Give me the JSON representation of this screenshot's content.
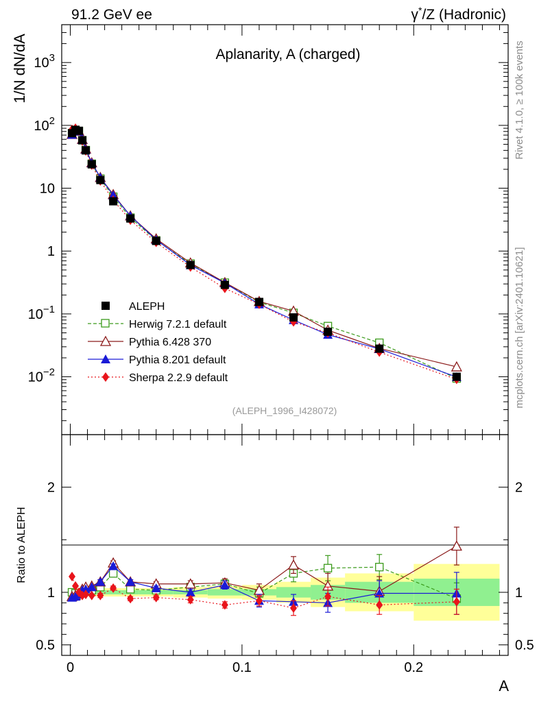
{
  "header": {
    "left": "91.2 GeV ee",
    "right_gamma": "γ",
    "right_star": "*",
    "right_rest": "/Z (Hadronic)"
  },
  "side": {
    "rivet": "Rivet 4.1.0, ≥ 100k events",
    "mcplots": "mcplots.cern.ch [arXiv:2401.10621]"
  },
  "chart_data": {
    "type": "line",
    "title": "Aplanarity, A (charged)",
    "reference": "(ALEPH_1996_I428072)",
    "ylabel_main": "1/N  dN/dA",
    "ylabel_ratio": "Ratio to ALEPH",
    "xlabel": "A",
    "xlim": [
      -0.005,
      0.255
    ],
    "ylim_main": [
      0.0012,
      4000
    ],
    "ylim_ratio": [
      0.4,
      2.5
    ],
    "main_ticks": [
      {
        "value": 0.01,
        "base": "10",
        "exp": "−2"
      },
      {
        "value": 0.1,
        "base": "10",
        "exp": "−1"
      },
      {
        "value": 1,
        "base": "1",
        "exp": ""
      },
      {
        "value": 10,
        "base": "10",
        "exp": ""
      },
      {
        "value": 100,
        "base": "10",
        "exp": "2"
      },
      {
        "value": 1000,
        "base": "10",
        "exp": "3"
      }
    ],
    "ratio_ticks": [
      {
        "value": 0.5,
        "label": "0.5"
      },
      {
        "value": 1,
        "label": "1"
      },
      {
        "value": 2,
        "label": "2"
      }
    ],
    "x_ticks": [
      {
        "value": 0,
        "label": "0"
      },
      {
        "value": 0.1,
        "label": "0.1"
      },
      {
        "value": 0.2,
        "label": "0.2"
      }
    ],
    "x": [
      0.001,
      0.003,
      0.005,
      0.007,
      0.009,
      0.0125,
      0.0175,
      0.025,
      0.035,
      0.05,
      0.07,
      0.09,
      0.11,
      0.13,
      0.15,
      0.18,
      0.225
    ],
    "bins": [
      0,
      0.002,
      0.004,
      0.006,
      0.008,
      0.01,
      0.015,
      0.02,
      0.03,
      0.04,
      0.06,
      0.08,
      0.1,
      0.12,
      0.14,
      0.16,
      0.2,
      0.25
    ],
    "band_inner": [
      0.02,
      0.02,
      0.02,
      0.02,
      0.02,
      0.02,
      0.02,
      0.02,
      0.02,
      0.02,
      0.02,
      0.03,
      0.03,
      0.05,
      0.07,
      0.1,
      0.13
    ],
    "band_outer": [
      0.04,
      0.04,
      0.04,
      0.04,
      0.04,
      0.04,
      0.04,
      0.04,
      0.04,
      0.04,
      0.05,
      0.06,
      0.07,
      0.1,
      0.14,
      0.18,
      0.27
    ],
    "data": {
      "name": "ALEPH",
      "values": [
        75,
        85,
        82,
        58,
        40,
        24,
        13.5,
        6.2,
        3.3,
        1.45,
        0.6,
        0.29,
        0.155,
        0.088,
        0.052,
        0.028,
        0.01
      ]
    },
    "series": [
      {
        "name": "Herwig 7.2.1 default",
        "color": "#3a9a1a",
        "dash": "5,3",
        "marker": "open-square",
        "ratio": [
          1.0,
          0.99,
          0.99,
          1.0,
          1.01,
          1.02,
          1.05,
          1.18,
          1.03,
          1.02,
          1.05,
          1.08,
          0.99,
          1.18,
          1.23,
          1.24,
          0.94
        ],
        "ratio_err": [
          0.01,
          0.01,
          0.01,
          0.01,
          0.01,
          0.01,
          0.02,
          0.02,
          0.02,
          0.02,
          0.03,
          0.04,
          0.06,
          0.08,
          0.12,
          0.12,
          0.15
        ]
      },
      {
        "name": "Pythia 6.428 370",
        "color": "#8b1a1a",
        "dash": "",
        "marker": "open-triangle",
        "ratio": [
          0.96,
          0.97,
          0.99,
          1.03,
          1.05,
          1.06,
          1.1,
          1.28,
          1.1,
          1.08,
          1.08,
          1.09,
          1.02,
          1.26,
          1.06,
          1.01,
          1.44
        ],
        "ratio_err": [
          0.01,
          0.01,
          0.01,
          0.01,
          0.01,
          0.01,
          0.02,
          0.02,
          0.02,
          0.02,
          0.03,
          0.04,
          0.06,
          0.08,
          0.12,
          0.14,
          0.18
        ]
      },
      {
        "name": "Pythia 8.201 default",
        "color": "#1a1ad6",
        "dash": "",
        "marker": "filled-triangle",
        "ratio": [
          0.95,
          0.96,
          0.98,
          1.02,
          1.03,
          1.05,
          1.1,
          1.25,
          1.1,
          1.04,
          1.0,
          1.07,
          0.92,
          0.91,
          0.9,
          0.99,
          0.99
        ],
        "ratio_err": [
          0.01,
          0.01,
          0.01,
          0.01,
          0.01,
          0.01,
          0.02,
          0.02,
          0.02,
          0.02,
          0.03,
          0.04,
          0.06,
          0.07,
          0.09,
          0.12,
          0.2
        ]
      },
      {
        "name": "Sherpa 2.2.9 default",
        "color": "#e8141b",
        "dash": "2,3",
        "marker": "filled-diamond",
        "ratio": [
          1.15,
          1.06,
          1.0,
          0.97,
          0.98,
          0.97,
          0.97,
          1.04,
          0.94,
          0.95,
          0.93,
          0.88,
          0.92,
          0.85,
          0.96,
          0.88,
          0.91
        ],
        "ratio_err": [
          0.01,
          0.01,
          0.01,
          0.01,
          0.01,
          0.01,
          0.02,
          0.02,
          0.02,
          0.02,
          0.03,
          0.03,
          0.05,
          0.07,
          0.09,
          0.09,
          0.12
        ]
      }
    ],
    "legend_position": "lower-left"
  }
}
